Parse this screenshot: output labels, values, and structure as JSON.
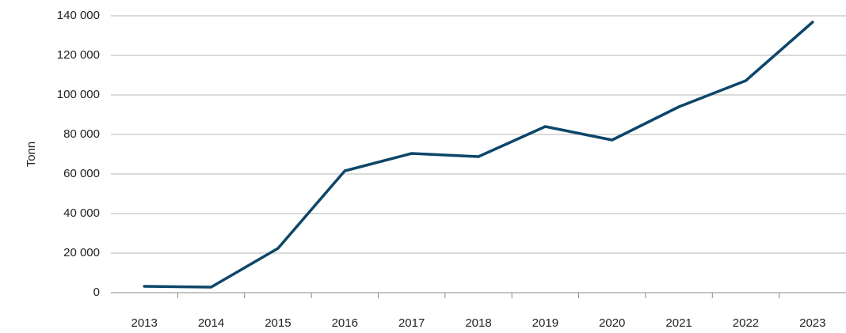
{
  "chart_data": {
    "type": "line",
    "y_label": "Tonn",
    "categories": [
      "2013",
      "2014",
      "2015",
      "2016",
      "2017",
      "2018",
      "2019",
      "2020",
      "2021",
      "2022",
      "2023"
    ],
    "series": [
      {
        "color": "#0d4669",
        "values": [
          3200,
          2800,
          22400,
          61600,
          70400,
          68800,
          84000,
          77200,
          94000,
          107200,
          136800
        ]
      }
    ],
    "ylim": [
      0,
      140000
    ],
    "yticks": [
      0,
      {
        "value": 20000,
        "label": "20 000"
      },
      {
        "value": 40000,
        "label": "40 000"
      },
      {
        "value": 60000,
        "label": "60 000"
      },
      {
        "value": 80000,
        "label": "80 000"
      },
      {
        "value": 100000,
        "label": "100 000"
      },
      {
        "value": 120000,
        "label": "120 000"
      },
      {
        "value": 140000,
        "label": "140 000"
      }
    ],
    "grid": true
  }
}
